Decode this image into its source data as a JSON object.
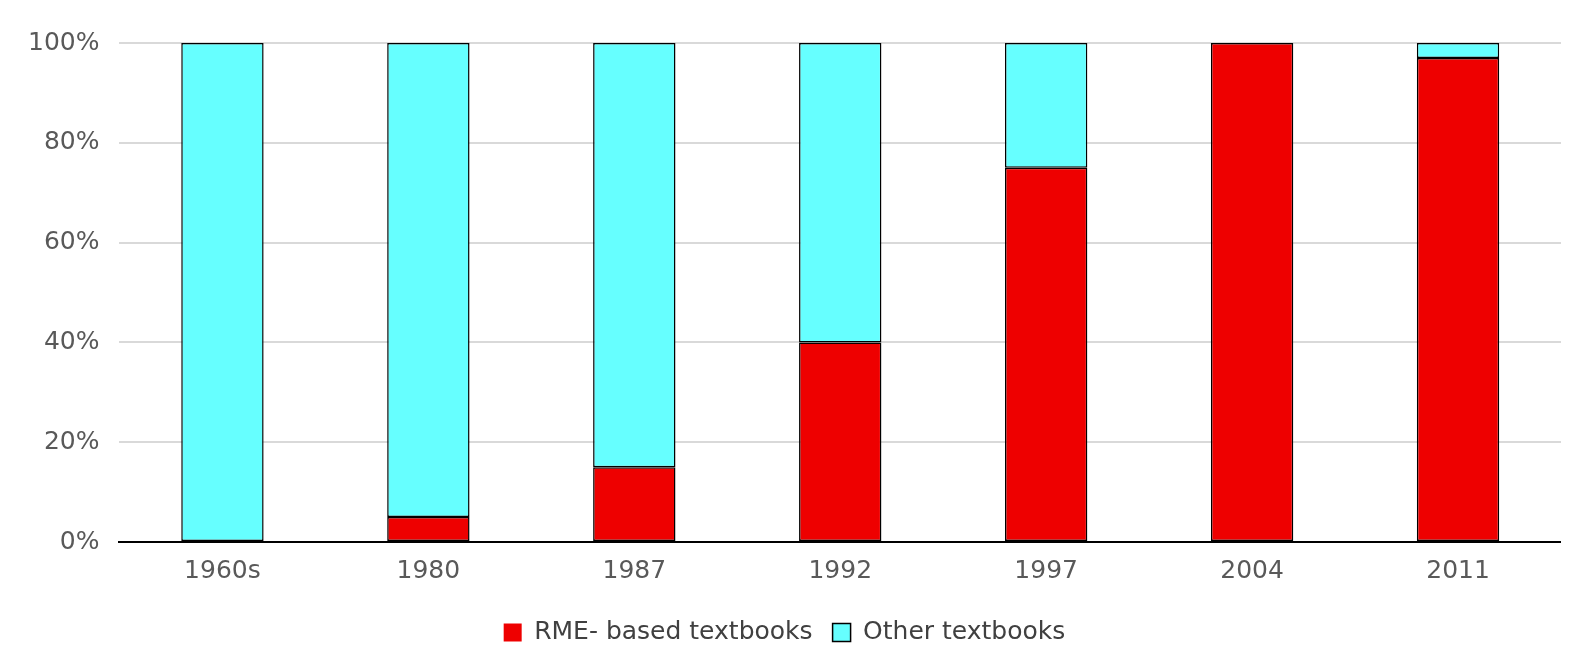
{
  "chart_data": {
    "type": "bar",
    "stacked": true,
    "categories": [
      "1960s",
      "1980",
      "1987",
      "1992",
      "1997",
      "2004",
      "2011"
    ],
    "series": [
      {
        "name": "RME- based textbooks",
        "color": "#ee0000",
        "values": [
          0,
          5,
          15,
          40,
          75,
          100,
          97
        ]
      },
      {
        "name": "Other textbooks",
        "color": "#66ffff",
        "values": [
          100,
          95,
          85,
          60,
          25,
          0,
          3
        ]
      }
    ],
    "ylim": [
      0,
      100
    ],
    "yticks": [
      {
        "value": 0,
        "label": "0%"
      },
      {
        "value": 20,
        "label": "20%"
      },
      {
        "value": 40,
        "label": "40%"
      },
      {
        "value": 60,
        "label": "60%"
      },
      {
        "value": 80,
        "label": "80%"
      },
      {
        "value": 100,
        "label": "100%"
      }
    ],
    "grid": "y",
    "legend": "bottom"
  }
}
